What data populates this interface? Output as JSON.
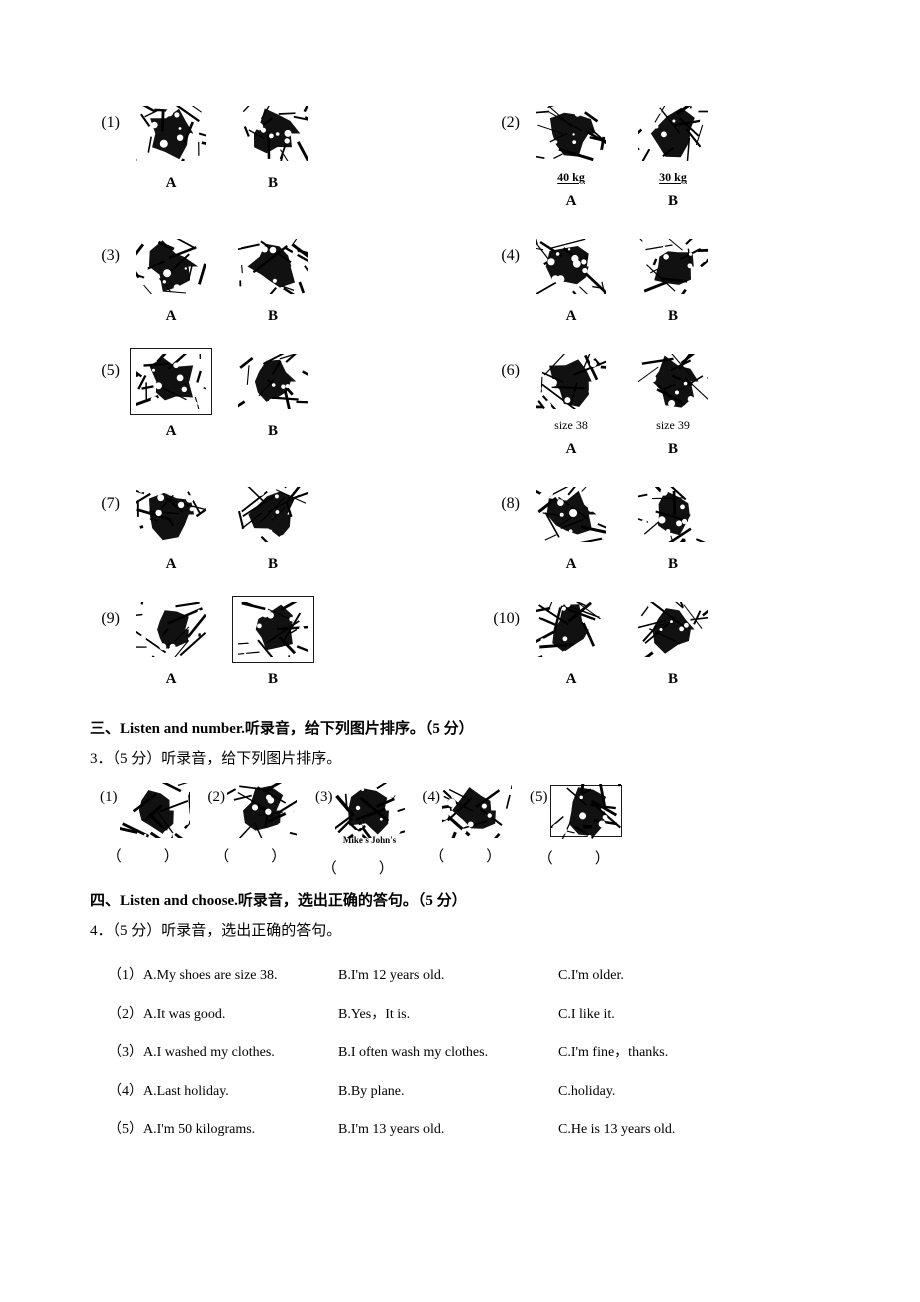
{
  "section2": {
    "items": [
      {
        "num": "(1)",
        "a_caption": "",
        "b_caption": "",
        "a_bordered": false,
        "b_bordered": false
      },
      {
        "num": "(2)",
        "a_caption": "40 kg",
        "b_caption": "30 kg",
        "a_underline": true,
        "b_underline": true,
        "a_bordered": false,
        "b_bordered": false
      },
      {
        "num": "(3)",
        "a_caption": "",
        "b_caption": "",
        "a_bordered": false,
        "b_bordered": false
      },
      {
        "num": "(4)",
        "a_caption": "",
        "b_caption": "",
        "a_bordered": false,
        "b_bordered": false
      },
      {
        "num": "(5)",
        "a_caption": "",
        "b_caption": "",
        "a_bordered": true,
        "b_bordered": false
      },
      {
        "num": "(6)",
        "a_caption": "size 38",
        "b_caption": "size 39",
        "a_bordered": false,
        "b_bordered": false
      },
      {
        "num": "(7)",
        "a_caption": "",
        "b_caption": "",
        "a_bordered": false,
        "b_bordered": false
      },
      {
        "num": "(8)",
        "a_caption": "",
        "b_caption": "",
        "a_bordered": false,
        "b_bordered": false
      },
      {
        "num": "(9)",
        "a_caption": "",
        "b_caption": "",
        "a_bordered": false,
        "b_bordered": true
      },
      {
        "num": "(10)",
        "a_caption": "",
        "b_caption": "",
        "a_bordered": false,
        "b_bordered": false
      }
    ],
    "letter_a": "A",
    "letter_b": "B"
  },
  "section3": {
    "title": "三、Listen and number.听录音，给下列图片排序。（5 分）",
    "instr": "3．（5 分）听录音，给下列图片排序。",
    "items": [
      {
        "num": "(1)",
        "micro": "",
        "bordered": false
      },
      {
        "num": "(2)",
        "micro": "",
        "bordered": false
      },
      {
        "num": "(3)",
        "micro": "Mike's  John's",
        "bordered": false
      },
      {
        "num": "(4)",
        "micro": "",
        "bordered": false
      },
      {
        "num": "(5)",
        "micro": "",
        "bordered": true
      }
    ],
    "blank": "（　　）"
  },
  "section4": {
    "title": "四、Listen and choose.听录音，选出正确的答句。（5 分）",
    "instr": "4．（5 分）听录音，选出正确的答句。",
    "rows": [
      {
        "n": "（1）",
        "a": "A.My shoes are size 38.",
        "b": "B.I'm 12 years old.",
        "c": "C.I'm older."
      },
      {
        "n": "（2）",
        "a": "A.It was good.",
        "b": "B.Yes，It is.",
        "c": "C.I like it."
      },
      {
        "n": "（3）",
        "a": "A.I washed my clothes.",
        "b": "B.I often wash my clothes.",
        "c": "C.I'm fine，thanks."
      },
      {
        "n": "（4）",
        "a": "A.Last holiday.",
        "b": "B.By plane.",
        "c": "C.holiday."
      },
      {
        "n": "（5）",
        "a": "A.I'm 50 kilograms.",
        "b": "B.I'm 13 years old.",
        "c": "C.He is 13 years old."
      }
    ]
  },
  "style": {
    "bg": "#ffffff",
    "fg": "#000000",
    "body_fontsize": 14,
    "title_fontsize": 15,
    "letter_fontsize": 15,
    "caption_fontsize": 12,
    "micro_fontsize": 9,
    "picbox_w": 80,
    "picbox_h": 65,
    "grid_colgap": 60,
    "grid_rowgap": 20
  }
}
